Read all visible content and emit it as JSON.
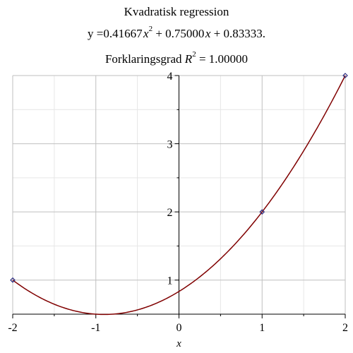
{
  "chart_data": {
    "type": "line",
    "title": "Kvadratisk regression",
    "equation": {
      "prefix": "y =",
      "a": "0.41667",
      "x_var": "x",
      "exp": "2",
      "plus1": " + ",
      "b": "0.75000",
      "plus2": " + ",
      "c": "0.83333",
      "suffix": "."
    },
    "r2": {
      "label": "Forklaringsgrad ",
      "symbol": "R",
      "exp": "2",
      "value": " = 1.00000"
    },
    "xlabel": "x",
    "ylabel": "",
    "xlim": [
      -2,
      2
    ],
    "ylim": [
      0.5,
      4
    ],
    "x_ticks": [
      -2,
      -1,
      0,
      1,
      2
    ],
    "y_ticks": [
      1,
      2,
      3,
      4
    ],
    "x_tick_labels": [
      "-2",
      "-1",
      "0",
      "1",
      "2"
    ],
    "y_tick_labels": [
      "1",
      "2",
      "3",
      "4"
    ],
    "grid": true,
    "coefficients": [
      0.41667,
      0.75,
      0.83333
    ],
    "points": [
      {
        "x": -2,
        "y": 1
      },
      {
        "x": 1,
        "y": 2
      },
      {
        "x": 2,
        "y": 4
      }
    ],
    "colors": {
      "curve": "#800000",
      "points": "#2b2b80",
      "grid_major": "#bfbfbf",
      "grid_minor": "#e6e6e6"
    }
  }
}
